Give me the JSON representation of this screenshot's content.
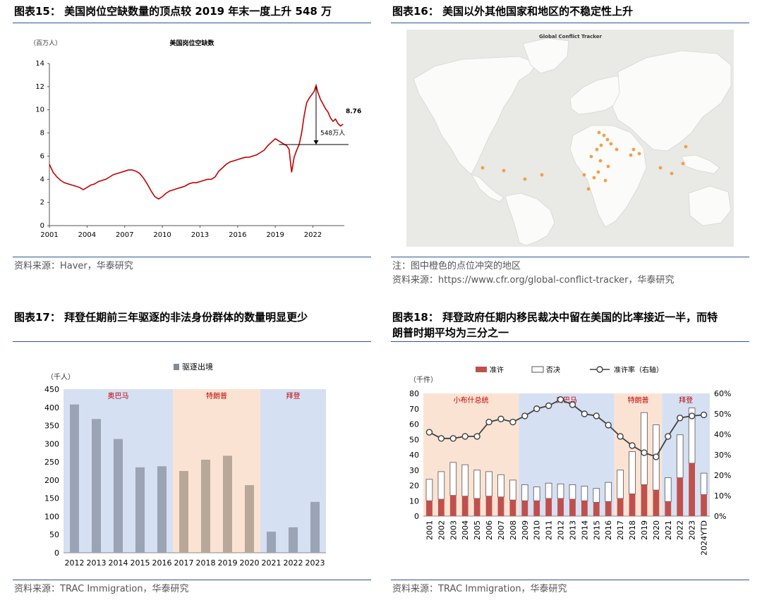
{
  "fig15": {
    "title": "图表15： 美国岗位空缺数量的顶点较 2019 年末一度上升 548 万",
    "source": "资料来源：Haver，华泰研究",
    "chart_data": {
      "type": "line",
      "title": "美国岗位空缺数",
      "unit_label": "（百万人）",
      "ylim": [
        0,
        14
      ],
      "yticks": [
        "0",
        "2",
        "4",
        "6",
        "8",
        "10",
        "12",
        "14"
      ],
      "xlim": [
        2001,
        2024.5
      ],
      "xticks": [
        "2001",
        "2004",
        "2007",
        "2010",
        "2013",
        "2016",
        "2019",
        "2022"
      ],
      "series": [
        {
          "color": "#c00000",
          "points": [
            [
              2001.0,
              5.3
            ],
            [
              2001.3,
              4.6
            ],
            [
              2001.6,
              4.2
            ],
            [
              2001.9,
              3.9
            ],
            [
              2002.2,
              3.7
            ],
            [
              2002.5,
              3.6
            ],
            [
              2002.8,
              3.5
            ],
            [
              2003.1,
              3.4
            ],
            [
              2003.4,
              3.3
            ],
            [
              2003.7,
              3.1
            ],
            [
              2004.0,
              3.3
            ],
            [
              2004.3,
              3.5
            ],
            [
              2004.6,
              3.6
            ],
            [
              2004.9,
              3.8
            ],
            [
              2005.2,
              3.9
            ],
            [
              2005.5,
              4.0
            ],
            [
              2005.8,
              4.2
            ],
            [
              2006.1,
              4.4
            ],
            [
              2006.4,
              4.5
            ],
            [
              2006.7,
              4.6
            ],
            [
              2007.0,
              4.7
            ],
            [
              2007.3,
              4.8
            ],
            [
              2007.6,
              4.8
            ],
            [
              2007.9,
              4.7
            ],
            [
              2008.2,
              4.5
            ],
            [
              2008.5,
              4.1
            ],
            [
              2008.8,
              3.6
            ],
            [
              2009.1,
              3.0
            ],
            [
              2009.4,
              2.5
            ],
            [
              2009.7,
              2.3
            ],
            [
              2010.0,
              2.5
            ],
            [
              2010.3,
              2.8
            ],
            [
              2010.6,
              3.0
            ],
            [
              2010.9,
              3.1
            ],
            [
              2011.2,
              3.2
            ],
            [
              2011.5,
              3.3
            ],
            [
              2011.8,
              3.4
            ],
            [
              2012.1,
              3.6
            ],
            [
              2012.4,
              3.7
            ],
            [
              2012.7,
              3.7
            ],
            [
              2013.0,
              3.8
            ],
            [
              2013.3,
              3.9
            ],
            [
              2013.6,
              4.0
            ],
            [
              2013.9,
              4.0
            ],
            [
              2014.2,
              4.2
            ],
            [
              2014.5,
              4.7
            ],
            [
              2014.8,
              5.0
            ],
            [
              2015.1,
              5.3
            ],
            [
              2015.4,
              5.5
            ],
            [
              2015.7,
              5.6
            ],
            [
              2016.0,
              5.7
            ],
            [
              2016.3,
              5.8
            ],
            [
              2016.6,
              5.9
            ],
            [
              2016.9,
              5.9
            ],
            [
              2017.2,
              6.0
            ],
            [
              2017.5,
              6.1
            ],
            [
              2017.8,
              6.3
            ],
            [
              2018.1,
              6.5
            ],
            [
              2018.4,
              6.9
            ],
            [
              2018.7,
              7.2
            ],
            [
              2019.0,
              7.5
            ],
            [
              2019.3,
              7.3
            ],
            [
              2019.6,
              7.1
            ],
            [
              2019.9,
              6.9
            ],
            [
              2020.1,
              6.6
            ],
            [
              2020.3,
              4.6
            ],
            [
              2020.5,
              5.9
            ],
            [
              2020.7,
              6.5
            ],
            [
              2020.9,
              7.0
            ],
            [
              2021.1,
              8.0
            ],
            [
              2021.3,
              9.5
            ],
            [
              2021.5,
              10.6
            ],
            [
              2021.7,
              11.0
            ],
            [
              2021.9,
              11.3
            ],
            [
              2022.1,
              11.6
            ],
            [
              2022.25,
              12.1
            ],
            [
              2022.4,
              11.5
            ],
            [
              2022.6,
              10.9
            ],
            [
              2022.8,
              10.5
            ],
            [
              2023.0,
              10.1
            ],
            [
              2023.2,
              9.8
            ],
            [
              2023.4,
              9.3
            ],
            [
              2023.6,
              9.0
            ],
            [
              2023.8,
              9.2
            ],
            [
              2024.0,
              8.8
            ],
            [
              2024.2,
              8.6
            ],
            [
              2024.4,
              8.76
            ]
          ]
        }
      ],
      "reference_line": 7.0,
      "annotations": {
        "end_value": "8.76",
        "diff_label": "548万人"
      }
    }
  },
  "fig16": {
    "title": "图表16： 美国以外其他国家和地区的不稳定性上升",
    "map_title": "Global Conflict Tracker",
    "note": "注：图中橙色的点位冲突的地区",
    "source": "资料来源：https://www.cfr.org/global-conflict-tracker，华泰研究",
    "dot_color": "#f0a04b"
  },
  "fig17": {
    "title": "图表17： 拜登任期前三年驱逐的非法身份群体的数量明显更少",
    "source": "资料来源：TRAC Immigration，华泰研究",
    "chart_data": {
      "type": "bar",
      "unit_label": "（千人）",
      "legend": "驱逐出境",
      "ylim": [
        0,
        450
      ],
      "yticks": [
        "0",
        "50",
        "100",
        "150",
        "200",
        "250",
        "300",
        "350",
        "400",
        "450"
      ],
      "categories": [
        "2012",
        "2013",
        "2014",
        "2015",
        "2016",
        "2017",
        "2018",
        "2019",
        "2020",
        "2021",
        "2022",
        "2023"
      ],
      "values": [
        408,
        368,
        313,
        235,
        238,
        225,
        256,
        267,
        186,
        58,
        70,
        140
      ],
      "periods": [
        {
          "label": "奥巴马",
          "from": 0,
          "to": 4,
          "bg": "#d6e0f3",
          "bar": "#9aa4b4"
        },
        {
          "label": "特朗普",
          "from": 5,
          "to": 8,
          "bg": "#fbe3d3",
          "bar": "#b8a89a"
        },
        {
          "label": "拜登",
          "from": 9,
          "to": 11,
          "bg": "#d6e0f3",
          "bar": "#9aa4b4"
        }
      ]
    }
  },
  "fig18": {
    "title_line1": "图表18： 拜登政府任期内移民裁决中留在美国的比率接近一半，而特",
    "title_line2": "朗普时期平均为三分之一",
    "source": "资料来源：TRAC Immigration，华泰研究",
    "chart_data": {
      "type": "bar",
      "unit_label": "（千件）",
      "legend": [
        "准许",
        "否决",
        "准许率（右轴）"
      ],
      "ylim": [
        0,
        80
      ],
      "yticks": [
        "0",
        "10",
        "20",
        "30",
        "40",
        "50",
        "60",
        "70",
        "80"
      ],
      "y2lim": [
        0,
        60
      ],
      "y2ticks": [
        "0%",
        "10%",
        "20%",
        "30%",
        "40%",
        "50%",
        "60%"
      ],
      "categories": [
        "2001",
        "2002",
        "2003",
        "2004",
        "2005",
        "2006",
        "2007",
        "2008",
        "2009",
        "2010",
        "2011",
        "2012",
        "2013",
        "2014",
        "2015",
        "2016",
        "2017",
        "2018",
        "2019",
        "2020",
        "2021",
        "2022",
        "2023",
        "2024YTD"
      ],
      "granted": [
        10,
        11,
        13.5,
        13,
        11.5,
        13,
        12.5,
        10.5,
        10,
        10,
        11.5,
        11.5,
        11,
        10,
        9,
        9.5,
        11.5,
        14.5,
        20.5,
        17,
        9.5,
        25,
        34.5,
        14
      ],
      "denied": [
        14,
        18,
        21.5,
        20.5,
        18.5,
        16,
        14.5,
        13,
        10.5,
        9,
        10,
        9.5,
        9.5,
        9.5,
        9,
        12.5,
        18.5,
        27.5,
        47,
        42.5,
        15.5,
        28,
        36,
        14
      ],
      "grant_rate": [
        41,
        38,
        38,
        39,
        39,
        46,
        47.5,
        46,
        49,
        52.5,
        54,
        57,
        54.5,
        50,
        49,
        44.5,
        39,
        34.5,
        31,
        29,
        39,
        48,
        49,
        49.5
      ],
      "periods": [
        {
          "label": "小布什总统",
          "from": 0,
          "to": 7,
          "bg": "#fbe3d3"
        },
        {
          "label": "奥巴马",
          "from": 8,
          "to": 15,
          "bg": "#d6e0f3"
        },
        {
          "label": "特朗普",
          "from": 16,
          "to": 19,
          "bg": "#fbe3d3"
        },
        {
          "label": "拜登",
          "from": 20,
          "to": 23,
          "bg": "#d6e0f3"
        }
      ],
      "colors": {
        "granted": "#c0504d",
        "denied": "#ffffff",
        "rate": "#404040"
      }
    }
  }
}
